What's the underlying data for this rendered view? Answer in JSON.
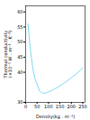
{
  "chart_data": {
    "type": "line",
    "xlabel": "Density(kg . m⁻³)",
    "ylabel": "Thermal conductivity\n(×10⁻³ W . m⁻¹ . K⁻¹)",
    "x": [
      10,
      15,
      20,
      25,
      30,
      35,
      40,
      50,
      60,
      70,
      80,
      90,
      100,
      110,
      120,
      130,
      140,
      150,
      160,
      170,
      180,
      190,
      200,
      210,
      220,
      230,
      240,
      250
    ],
    "values": [
      56,
      52,
      48,
      45,
      42,
      40,
      38,
      36,
      34,
      33.2,
      33.0,
      33.2,
      33.5,
      33.8,
      34.2,
      34.6,
      35.0,
      35.5,
      36.0,
      36.5,
      37.0,
      37.6,
      38.2,
      38.8,
      39.4,
      40.0,
      40.7,
      41.4
    ],
    "color": "#7fd8f0",
    "xlim": [
      0,
      260
    ],
    "ylim": [
      30,
      62
    ],
    "xticks": [
      0,
      50,
      100,
      150,
      200,
      250
    ],
    "yticks": [
      30,
      40,
      45,
      50,
      55,
      60
    ]
  }
}
